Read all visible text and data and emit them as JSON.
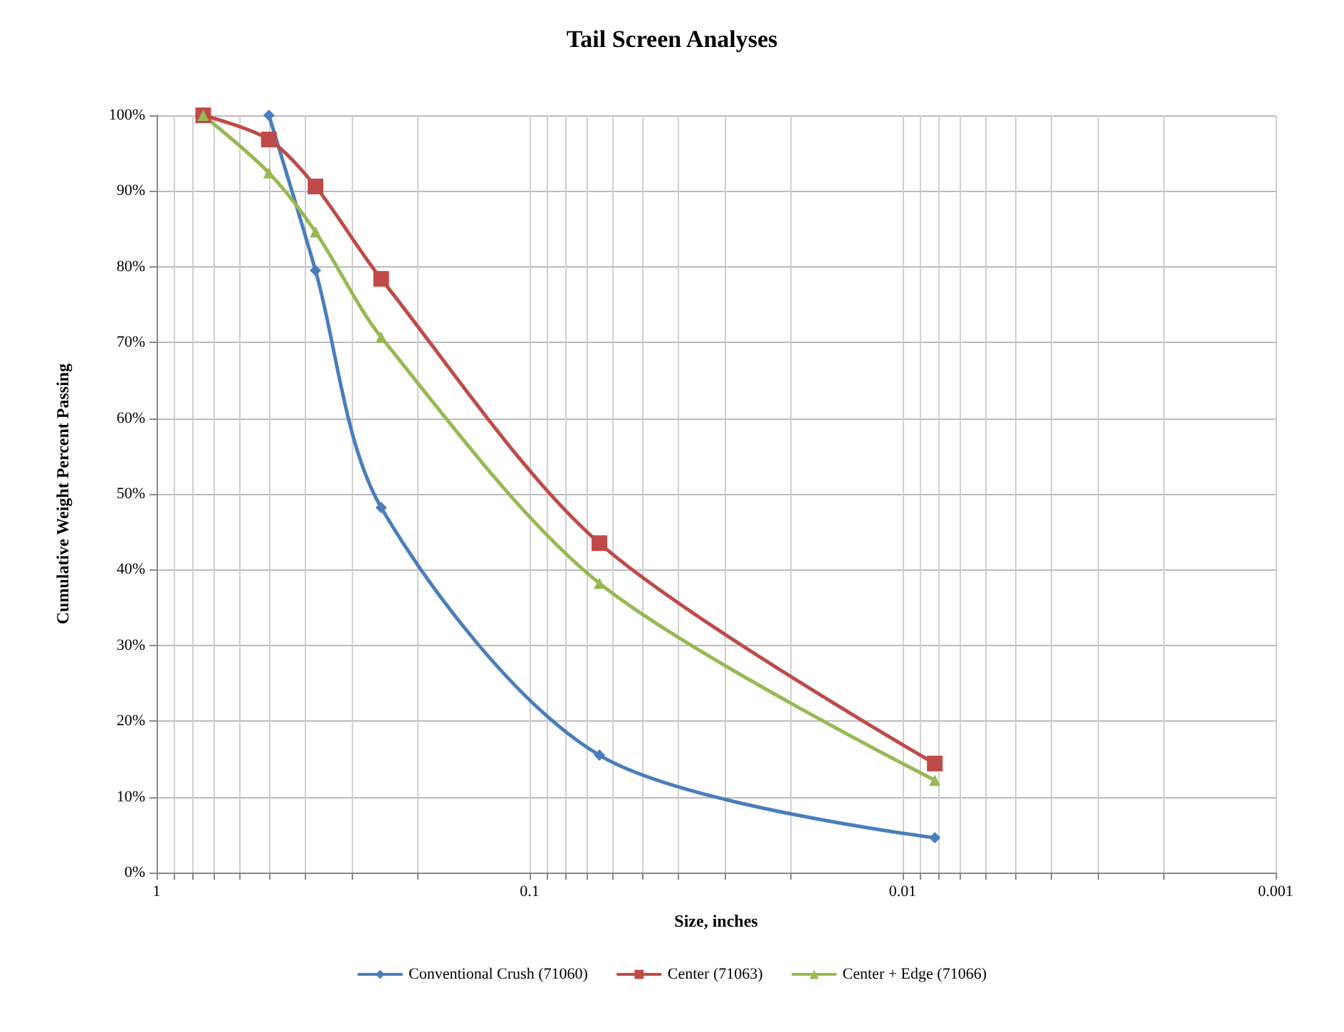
{
  "chart_data": {
    "type": "line",
    "title": "Tail Screen Analyses",
    "xlabel": "Size, inches",
    "ylabel": "Cumulative Weight Percent Passing",
    "log": "x",
    "grid": true,
    "legend": "bottom",
    "line_style": "solid",
    "xlim": [
      1,
      0.001
    ],
    "xticks": [
      1,
      {
        "value": 0.9,
        "label": null
      },
      {
        "value": 0.8,
        "label": null
      },
      {
        "value": 0.7,
        "label": null
      },
      {
        "value": 0.6,
        "label": null
      },
      {
        "value": 0.5,
        "label": null
      },
      {
        "value": 0.4,
        "label": null
      },
      {
        "value": 0.3,
        "label": null
      },
      {
        "value": 0.2,
        "label": null
      },
      0.1,
      {
        "value": 0.09,
        "label": null
      },
      {
        "value": 0.08,
        "label": null
      },
      {
        "value": 0.07,
        "label": null
      },
      {
        "value": 0.06,
        "label": null
      },
      {
        "value": 0.05,
        "label": null
      },
      {
        "value": 0.04,
        "label": null
      },
      {
        "value": 0.03,
        "label": null
      },
      {
        "value": 0.02,
        "label": null
      },
      0.01,
      {
        "value": 0.009,
        "label": null
      },
      {
        "value": 0.008,
        "label": null
      },
      {
        "value": 0.007,
        "label": null
      },
      {
        "value": 0.006,
        "label": null
      },
      {
        "value": 0.005,
        "label": null
      },
      {
        "value": 0.004,
        "label": null
      },
      {
        "value": 0.003,
        "label": null
      },
      {
        "value": 0.002,
        "label": null
      },
      0.001
    ],
    "ylim": [
      0,
      100
    ],
    "yticks": [
      {
        "value": 0,
        "label": "0%"
      },
      {
        "value": 10,
        "label": "10%"
      },
      {
        "value": 20,
        "label": "20%"
      },
      {
        "value": 30,
        "label": "30%"
      },
      {
        "value": 40,
        "label": "40%"
      },
      {
        "value": 50,
        "label": "50%"
      },
      {
        "value": 60,
        "label": "60%"
      },
      {
        "value": 70,
        "label": "70%"
      },
      {
        "value": 80,
        "label": "80%"
      },
      {
        "value": 90,
        "label": "90%"
      },
      {
        "value": 100,
        "label": "100%"
      }
    ],
    "series": [
      {
        "name": "Conventional Crush (71060)",
        "color": "#4a7ebb",
        "marker": "diamond",
        "x": [
          0.5,
          0.375,
          0.25,
          0.065,
          0.0082
        ],
        "values": [
          100,
          79.5,
          48.2,
          15.5,
          4.6
        ]
      },
      {
        "name": "Center (71063)",
        "color": "#be4b48",
        "marker": "square",
        "x": [
          0.75,
          0.5,
          0.375,
          0.25,
          0.065,
          0.0082
        ],
        "values": [
          100,
          96.8,
          90.6,
          78.4,
          43.5,
          14.4
        ]
      },
      {
        "name": "Center + Edge (71066)",
        "color": "#98b954",
        "marker": "triangle",
        "x": [
          0.75,
          0.5,
          0.375,
          0.25,
          0.065,
          0.0082
        ],
        "values": [
          100,
          92.4,
          84.6,
          70.7,
          38.2,
          12.2
        ]
      }
    ]
  }
}
